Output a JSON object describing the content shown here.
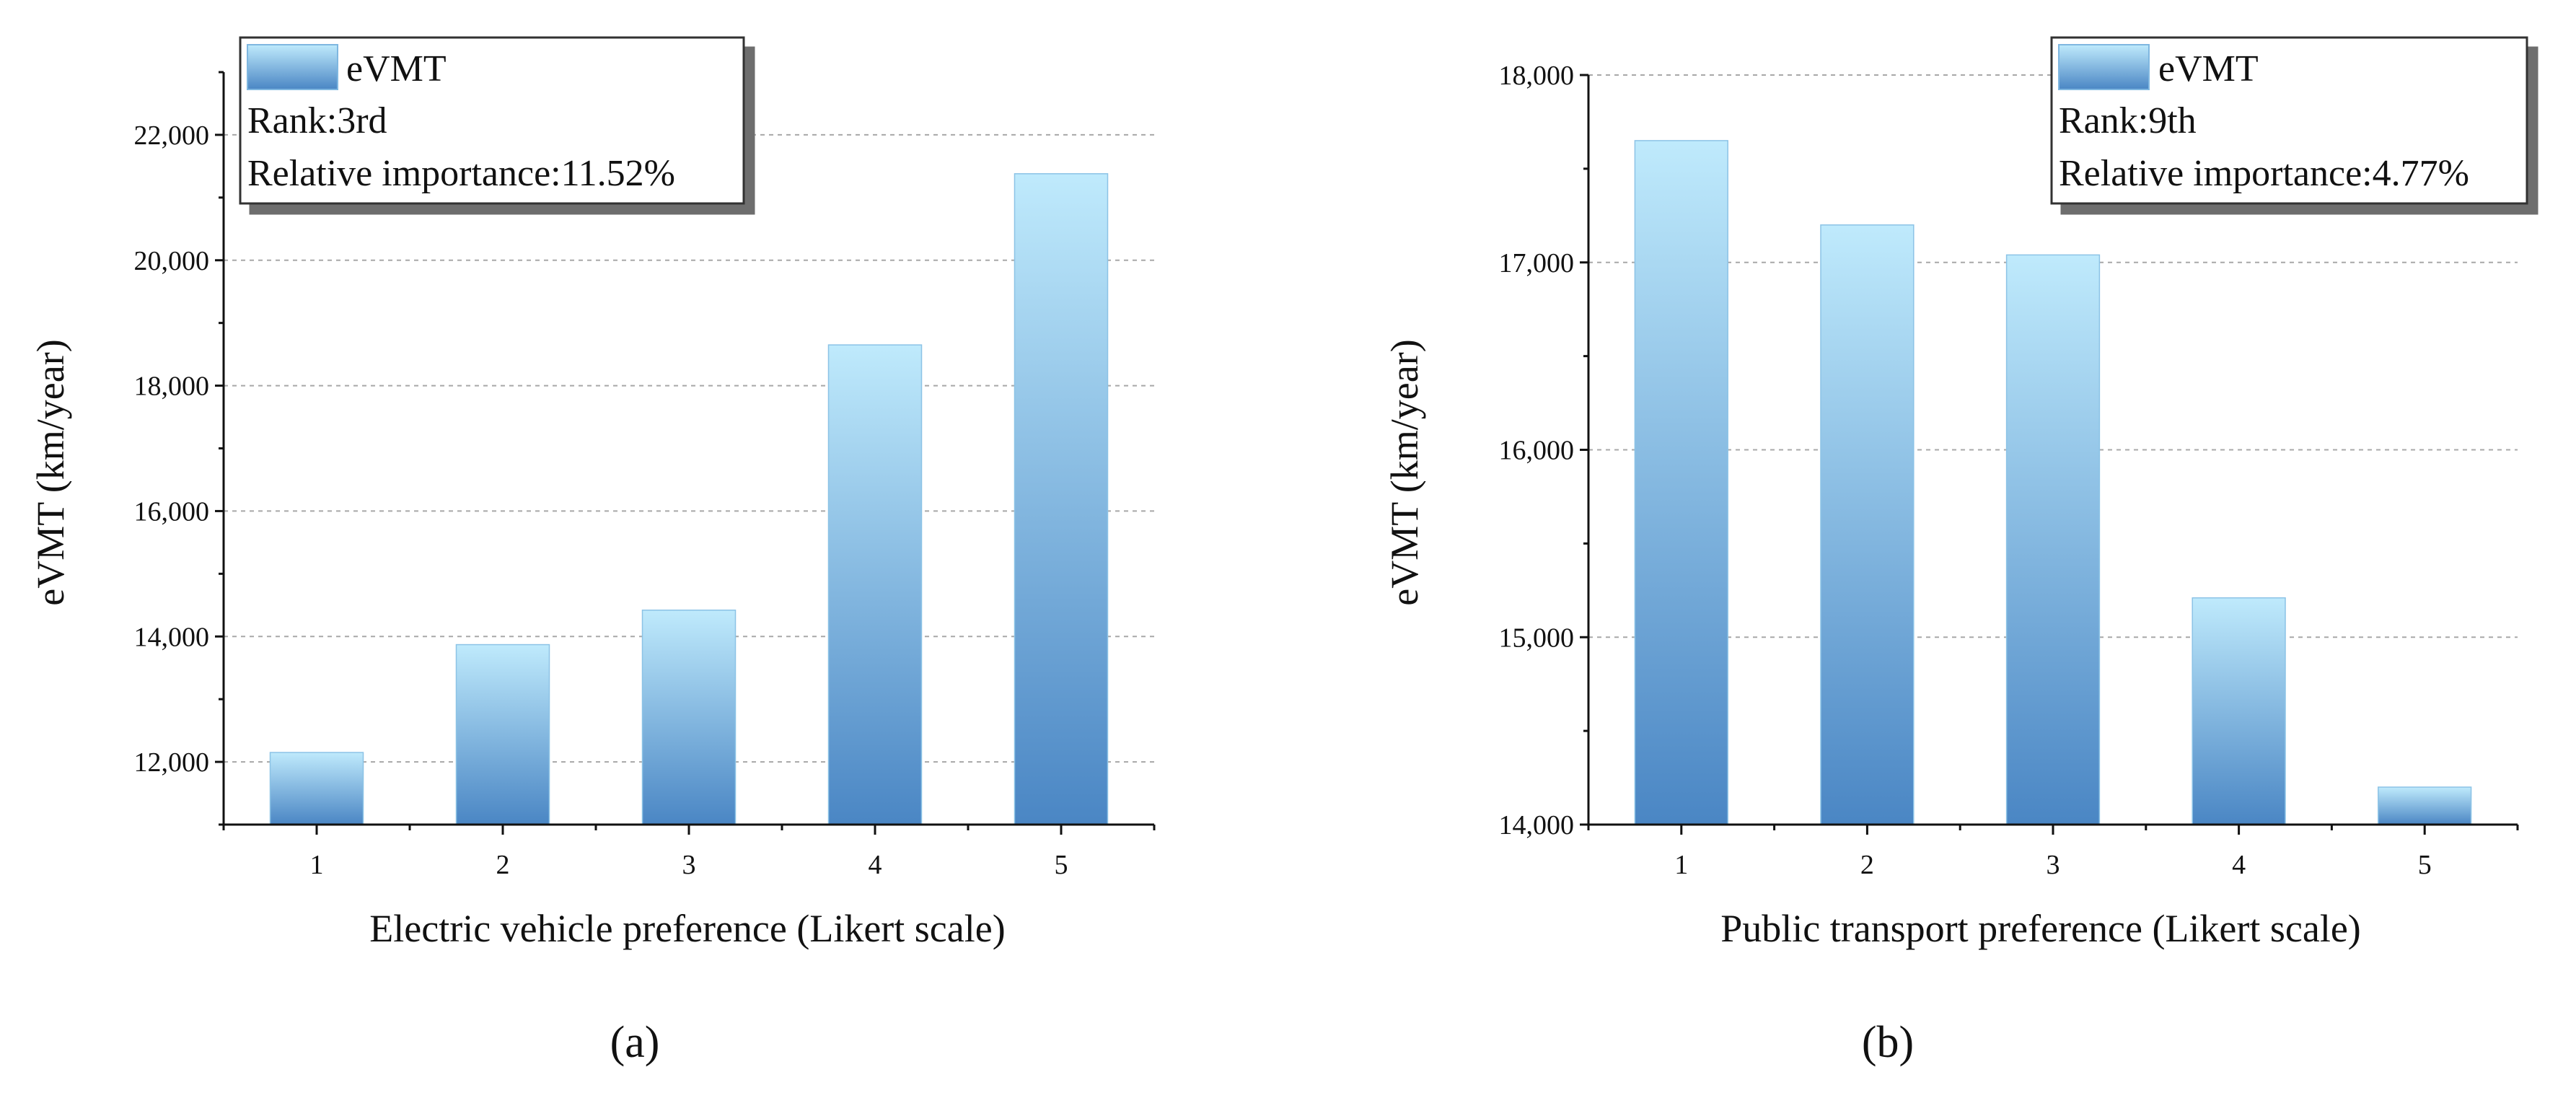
{
  "chart_data": [
    {
      "type": "bar",
      "panel_label": "(a)",
      "categories": [
        "1",
        "2",
        "3",
        "4",
        "5"
      ],
      "series": [
        {
          "name": "eVMT",
          "values": [
            12150,
            13870,
            14420,
            18650,
            21380
          ]
        }
      ],
      "xlabel": "Electric vehicle preference (Likert scale)",
      "ylabel": "eVMT (km/year)",
      "ylim": [
        11000,
        23000
      ],
      "yticks": [
        12000,
        14000,
        16000,
        18000,
        20000,
        22000
      ],
      "ytick_labels": [
        "12,000",
        "14,000",
        "16,000",
        "18,000",
        "20,000",
        "22,000"
      ],
      "grid": true,
      "legend": {
        "placement": "top-left",
        "lines": [
          "Rank:3rd",
          "Relative importance:11.52%"
        ]
      },
      "colors": {
        "bar_top": "#bfeafc",
        "bar_bottom": "#4a86c4",
        "grid": "#a8a8a8"
      }
    },
    {
      "type": "bar",
      "panel_label": "(b)",
      "categories": [
        "1",
        "2",
        "3",
        "4",
        "5"
      ],
      "series": [
        {
          "name": "eVMT",
          "values": [
            17650,
            17200,
            17040,
            15210,
            14200
          ]
        }
      ],
      "xlabel": "Public transport preference (Likert scale)",
      "ylabel": "eVMT (km/year)",
      "ylim": [
        14000,
        18000
      ],
      "yticks": [
        14000,
        15000,
        16000,
        17000,
        18000
      ],
      "ytick_labels": [
        "14,000",
        "15,000",
        "16,000",
        "17,000",
        "18,000"
      ],
      "grid": true,
      "legend": {
        "placement": "top-right",
        "lines": [
          "Rank:9th",
          "Relative importance:4.77%"
        ]
      },
      "colors": {
        "bar_top": "#bfeafc",
        "bar_bottom": "#4a86c4",
        "grid": "#a8a8a8"
      }
    }
  ]
}
